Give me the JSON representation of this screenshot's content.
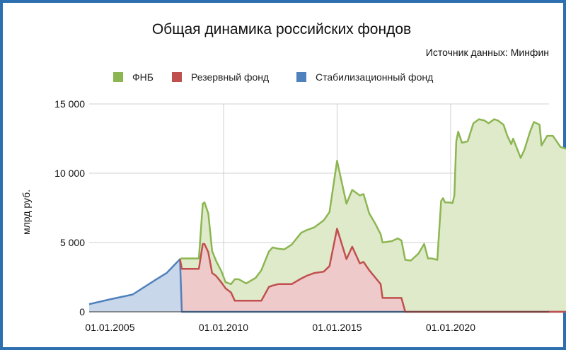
{
  "chart_data": {
    "type": "area",
    "title": "Общая динамика российских фондов",
    "source_note": "Источник данных: Минфин",
    "ylabel": "млрд руб.",
    "xlabel": "",
    "ylim": [
      0,
      15000
    ],
    "xlim": [
      "2004-02-01",
      "2024-05-01"
    ],
    "y_ticks": [
      {
        "value": 0,
        "label": "0"
      },
      {
        "value": 5000,
        "label": "5 000"
      },
      {
        "value": 10000,
        "label": "10 000"
      },
      {
        "value": 15000,
        "label": "15 000"
      }
    ],
    "x_ticks": [
      {
        "date": "2005-01-01",
        "label": "01.01.2005"
      },
      {
        "date": "2010-01-01",
        "label": "01.01.2010"
      },
      {
        "date": "2015-01-01",
        "label": "01.01.2015"
      },
      {
        "date": "2020-01-01",
        "label": "01.01.2020"
      }
    ],
    "x_gridlines": [
      "2010-01-01",
      "2015-01-01",
      "2020-01-01",
      "2025-01-01"
    ],
    "grid": true,
    "legend_position": "top",
    "stacked": true,
    "series": [
      {
        "name": "ФНБ",
        "line_color": "#8cb652",
        "fill_color": "#dfeacb",
        "points": [
          [
            "2008-02-01",
            0
          ],
          [
            "2008-03-01",
            750
          ],
          [
            "2008-09-01",
            750
          ],
          [
            "2008-12-01",
            750
          ],
          [
            "2009-02-01",
            2900
          ],
          [
            "2009-03-01",
            3000
          ],
          [
            "2009-05-01",
            2800
          ],
          [
            "2009-07-01",
            1600
          ],
          [
            "2009-09-01",
            1100
          ],
          [
            "2009-12-01",
            800
          ],
          [
            "2010-02-01",
            450
          ],
          [
            "2010-05-01",
            600
          ],
          [
            "2010-07-01",
            1550
          ],
          [
            "2010-09-01",
            1550
          ],
          [
            "2011-01-01",
            1250
          ],
          [
            "2011-06-01",
            1650
          ],
          [
            "2011-09-01",
            2200
          ],
          [
            "2012-01-01",
            2550
          ],
          [
            "2012-03-01",
            2750
          ],
          [
            "2012-06-01",
            2550
          ],
          [
            "2012-09-01",
            2500
          ],
          [
            "2013-01-01",
            2850
          ],
          [
            "2013-06-01",
            3300
          ],
          [
            "2013-09-01",
            3300
          ],
          [
            "2014-01-01",
            3300
          ],
          [
            "2014-06-01",
            3700
          ],
          [
            "2014-09-01",
            3900
          ],
          [
            "2015-01-01",
            4900
          ],
          [
            "2015-06-01",
            4000
          ],
          [
            "2015-09-01",
            4100
          ],
          [
            "2016-01-01",
            4900
          ],
          [
            "2016-03-01",
            4900
          ],
          [
            "2016-06-01",
            4100
          ],
          [
            "2016-09-01",
            3900
          ],
          [
            "2016-12-01",
            3600
          ],
          [
            "2017-01-01",
            4000
          ],
          [
            "2017-06-01",
            4100
          ],
          [
            "2017-09-01",
            4300
          ],
          [
            "2017-11-01",
            4150
          ],
          [
            "2018-01-01",
            3750
          ],
          [
            "2018-04-01",
            3700
          ],
          [
            "2018-08-01",
            4200
          ],
          [
            "2018-11-01",
            4900
          ],
          [
            "2019-01-01",
            3850
          ],
          [
            "2019-03-01",
            3850
          ],
          [
            "2019-06-01",
            3750
          ],
          [
            "2019-08-01",
            8000
          ],
          [
            "2019-09-01",
            8200
          ],
          [
            "2019-10-01",
            7900
          ],
          [
            "2019-12-01",
            7900
          ],
          [
            "2020-02-01",
            7850
          ],
          [
            "2020-03-01",
            8400
          ],
          [
            "2020-04-01",
            12300
          ],
          [
            "2020-05-01",
            13000
          ],
          [
            "2020-07-01",
            12200
          ],
          [
            "2020-10-01",
            12300
          ],
          [
            "2021-01-01",
            13600
          ],
          [
            "2021-04-01",
            13900
          ],
          [
            "2021-07-01",
            13800
          ],
          [
            "2021-09-01",
            13600
          ],
          [
            "2021-12-01",
            13900
          ],
          [
            "2022-02-01",
            13800
          ],
          [
            "2022-05-01",
            13500
          ],
          [
            "2022-07-01",
            12700
          ],
          [
            "2022-09-01",
            12100
          ],
          [
            "2022-10-01",
            12500
          ],
          [
            "2022-12-01",
            11800
          ],
          [
            "2023-02-01",
            11100
          ],
          [
            "2023-04-01",
            11700
          ],
          [
            "2023-07-01",
            13000
          ],
          [
            "2023-09-01",
            13700
          ],
          [
            "2023-12-01",
            13500
          ],
          [
            "2024-01-01",
            12000
          ],
          [
            "2024-04-01",
            12700
          ],
          [
            "2024-07-01",
            12700
          ],
          [
            "2024-09-01",
            12300
          ],
          [
            "2024-11-01",
            11900
          ],
          [
            "2025-01-01",
            11800
          ],
          [
            "2025-04-01",
            11700
          ],
          [
            "2025-05-01",
            13000
          ]
        ]
      },
      {
        "name": "Резервный фонд",
        "line_color": "#c0504d",
        "fill_color": "#efcaca",
        "points": [
          [
            "2008-02-01",
            3800
          ],
          [
            "2008-03-01",
            3100
          ],
          [
            "2008-09-01",
            3100
          ],
          [
            "2008-12-01",
            3100
          ],
          [
            "2009-02-01",
            4900
          ],
          [
            "2009-03-01",
            4900
          ],
          [
            "2009-05-01",
            4300
          ],
          [
            "2009-07-01",
            2800
          ],
          [
            "2009-09-01",
            2600
          ],
          [
            "2009-12-01",
            2100
          ],
          [
            "2010-02-01",
            1700
          ],
          [
            "2010-05-01",
            1400
          ],
          [
            "2010-07-01",
            800
          ],
          [
            "2010-09-01",
            800
          ],
          [
            "2011-01-01",
            800
          ],
          [
            "2011-06-01",
            800
          ],
          [
            "2011-09-01",
            800
          ],
          [
            "2012-01-01",
            1800
          ],
          [
            "2012-03-01",
            1900
          ],
          [
            "2012-06-01",
            2000
          ],
          [
            "2012-09-01",
            2000
          ],
          [
            "2013-01-01",
            2000
          ],
          [
            "2013-06-01",
            2400
          ],
          [
            "2013-09-01",
            2600
          ],
          [
            "2014-01-01",
            2800
          ],
          [
            "2014-06-01",
            2900
          ],
          [
            "2014-09-01",
            3300
          ],
          [
            "2015-01-01",
            6000
          ],
          [
            "2015-06-01",
            3800
          ],
          [
            "2015-09-01",
            4700
          ],
          [
            "2016-01-01",
            3500
          ],
          [
            "2016-03-01",
            3600
          ],
          [
            "2016-06-01",
            3000
          ],
          [
            "2016-09-01",
            2500
          ],
          [
            "2016-12-01",
            2000
          ],
          [
            "2017-01-01",
            1000
          ],
          [
            "2017-06-01",
            1000
          ],
          [
            "2017-09-01",
            1000
          ],
          [
            "2017-11-01",
            1000
          ],
          [
            "2018-01-01",
            0
          ],
          [
            "2018-04-01",
            0
          ],
          [
            "2018-08-01",
            0
          ],
          [
            "2018-11-01",
            0
          ],
          [
            "2019-01-01",
            0
          ],
          [
            "2019-03-01",
            0
          ],
          [
            "2019-06-01",
            0
          ],
          [
            "2019-08-01",
            0
          ],
          [
            "2019-09-01",
            0
          ],
          [
            "2019-10-01",
            0
          ],
          [
            "2019-12-01",
            0
          ],
          [
            "2020-02-01",
            0
          ],
          [
            "2020-03-01",
            0
          ],
          [
            "2020-04-01",
            0
          ],
          [
            "2020-05-01",
            0
          ],
          [
            "2020-07-01",
            0
          ],
          [
            "2020-10-01",
            0
          ],
          [
            "2021-01-01",
            0
          ],
          [
            "2021-04-01",
            0
          ],
          [
            "2021-07-01",
            0
          ],
          [
            "2021-09-01",
            0
          ],
          [
            "2021-12-01",
            0
          ],
          [
            "2022-02-01",
            0
          ],
          [
            "2022-05-01",
            0
          ],
          [
            "2022-07-01",
            0
          ],
          [
            "2022-09-01",
            0
          ],
          [
            "2022-10-01",
            0
          ],
          [
            "2022-12-01",
            0
          ],
          [
            "2023-02-01",
            0
          ],
          [
            "2023-04-01",
            0
          ],
          [
            "2023-07-01",
            0
          ],
          [
            "2023-09-01",
            0
          ],
          [
            "2023-12-01",
            0
          ],
          [
            "2024-01-01",
            0
          ],
          [
            "2024-04-01",
            0
          ],
          [
            "2024-07-01",
            0
          ],
          [
            "2024-09-01",
            0
          ],
          [
            "2024-11-01",
            0
          ],
          [
            "2025-01-01",
            0
          ],
          [
            "2025-04-01",
            0
          ],
          [
            "2025-05-01",
            0
          ]
        ]
      },
      {
        "name": "Стабилизационный фонд",
        "line_color": "#4f81bd",
        "fill_color": "#c9d7ea",
        "points": [
          [
            "2004-02-01",
            550
          ],
          [
            "2005-01-01",
            900
          ],
          [
            "2006-01-01",
            1250
          ],
          [
            "2007-01-01",
            2300
          ],
          [
            "2007-07-01",
            2800
          ],
          [
            "2008-02-01",
            3800
          ],
          [
            "2008-03-01",
            0
          ],
          [
            "2025-05-01",
            0
          ]
        ]
      }
    ]
  }
}
